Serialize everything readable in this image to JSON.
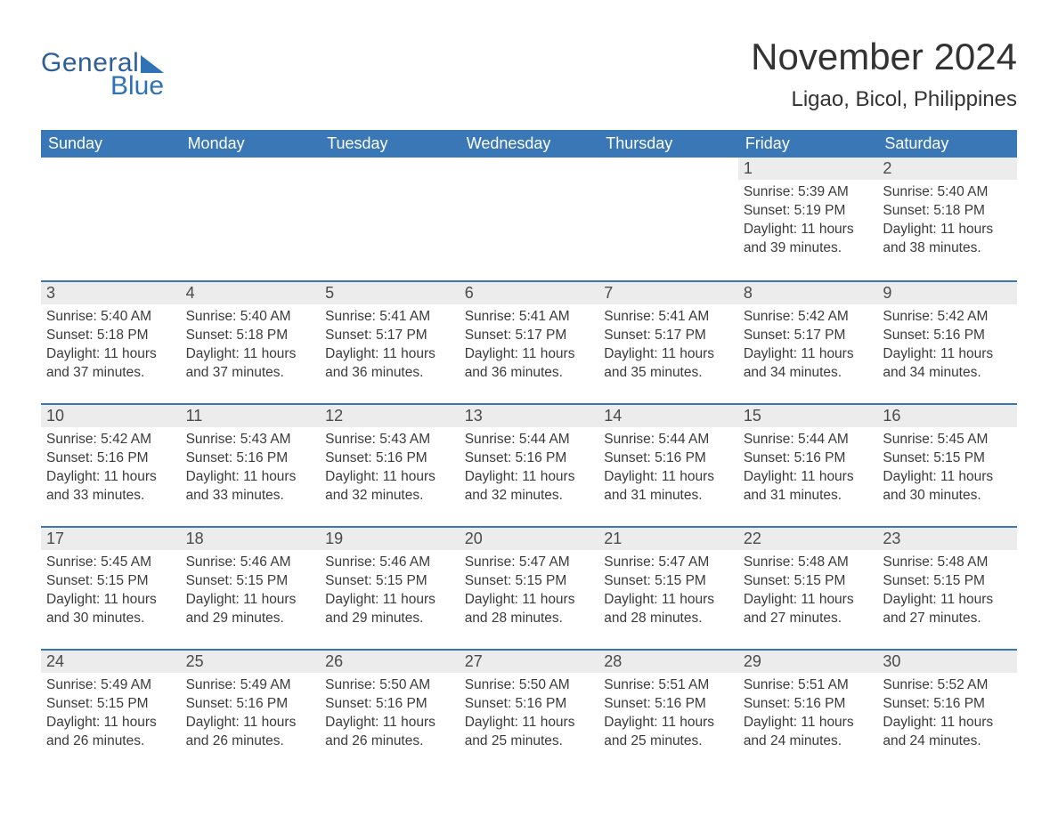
{
  "brand": {
    "word1": "General",
    "word2": "Blue",
    "logo_color1": "#2f5f98",
    "logo_color2": "#2f72b5"
  },
  "header": {
    "month_title": "November 2024",
    "location": "Ligao, Bicol, Philippines"
  },
  "style": {
    "header_bg": "#3a77b7",
    "header_text_color": "#ffffff",
    "daynum_bg": "#ececec",
    "row_divider_color": "#3a77b7",
    "body_text_color": "#3b3b3b",
    "page_bg": "#ffffff",
    "font_family": "Arial, Helvetica, sans-serif",
    "title_fontsize_pt": 32,
    "location_fontsize_pt": 18,
    "header_fontsize_pt": 14,
    "daynum_fontsize_pt": 14,
    "body_fontsize_pt": 12
  },
  "calendar": {
    "weekdays": [
      "Sunday",
      "Monday",
      "Tuesday",
      "Wednesday",
      "Thursday",
      "Friday",
      "Saturday"
    ],
    "weeks": [
      [
        null,
        null,
        null,
        null,
        null,
        {
          "n": "1",
          "sunrise": "Sunrise: 5:39 AM",
          "sunset": "Sunset: 5:19 PM",
          "daylight": "Daylight: 11 hours and 39 minutes."
        },
        {
          "n": "2",
          "sunrise": "Sunrise: 5:40 AM",
          "sunset": "Sunset: 5:18 PM",
          "daylight": "Daylight: 11 hours and 38 minutes."
        }
      ],
      [
        {
          "n": "3",
          "sunrise": "Sunrise: 5:40 AM",
          "sunset": "Sunset: 5:18 PM",
          "daylight": "Daylight: 11 hours and 37 minutes."
        },
        {
          "n": "4",
          "sunrise": "Sunrise: 5:40 AM",
          "sunset": "Sunset: 5:18 PM",
          "daylight": "Daylight: 11 hours and 37 minutes."
        },
        {
          "n": "5",
          "sunrise": "Sunrise: 5:41 AM",
          "sunset": "Sunset: 5:17 PM",
          "daylight": "Daylight: 11 hours and 36 minutes."
        },
        {
          "n": "6",
          "sunrise": "Sunrise: 5:41 AM",
          "sunset": "Sunset: 5:17 PM",
          "daylight": "Daylight: 11 hours and 36 minutes."
        },
        {
          "n": "7",
          "sunrise": "Sunrise: 5:41 AM",
          "sunset": "Sunset: 5:17 PM",
          "daylight": "Daylight: 11 hours and 35 minutes."
        },
        {
          "n": "8",
          "sunrise": "Sunrise: 5:42 AM",
          "sunset": "Sunset: 5:17 PM",
          "daylight": "Daylight: 11 hours and 34 minutes."
        },
        {
          "n": "9",
          "sunrise": "Sunrise: 5:42 AM",
          "sunset": "Sunset: 5:16 PM",
          "daylight": "Daylight: 11 hours and 34 minutes."
        }
      ],
      [
        {
          "n": "10",
          "sunrise": "Sunrise: 5:42 AM",
          "sunset": "Sunset: 5:16 PM",
          "daylight": "Daylight: 11 hours and 33 minutes."
        },
        {
          "n": "11",
          "sunrise": "Sunrise: 5:43 AM",
          "sunset": "Sunset: 5:16 PM",
          "daylight": "Daylight: 11 hours and 33 minutes."
        },
        {
          "n": "12",
          "sunrise": "Sunrise: 5:43 AM",
          "sunset": "Sunset: 5:16 PM",
          "daylight": "Daylight: 11 hours and 32 minutes."
        },
        {
          "n": "13",
          "sunrise": "Sunrise: 5:44 AM",
          "sunset": "Sunset: 5:16 PM",
          "daylight": "Daylight: 11 hours and 32 minutes."
        },
        {
          "n": "14",
          "sunrise": "Sunrise: 5:44 AM",
          "sunset": "Sunset: 5:16 PM",
          "daylight": "Daylight: 11 hours and 31 minutes."
        },
        {
          "n": "15",
          "sunrise": "Sunrise: 5:44 AM",
          "sunset": "Sunset: 5:16 PM",
          "daylight": "Daylight: 11 hours and 31 minutes."
        },
        {
          "n": "16",
          "sunrise": "Sunrise: 5:45 AM",
          "sunset": "Sunset: 5:15 PM",
          "daylight": "Daylight: 11 hours and 30 minutes."
        }
      ],
      [
        {
          "n": "17",
          "sunrise": "Sunrise: 5:45 AM",
          "sunset": "Sunset: 5:15 PM",
          "daylight": "Daylight: 11 hours and 30 minutes."
        },
        {
          "n": "18",
          "sunrise": "Sunrise: 5:46 AM",
          "sunset": "Sunset: 5:15 PM",
          "daylight": "Daylight: 11 hours and 29 minutes."
        },
        {
          "n": "19",
          "sunrise": "Sunrise: 5:46 AM",
          "sunset": "Sunset: 5:15 PM",
          "daylight": "Daylight: 11 hours and 29 minutes."
        },
        {
          "n": "20",
          "sunrise": "Sunrise: 5:47 AM",
          "sunset": "Sunset: 5:15 PM",
          "daylight": "Daylight: 11 hours and 28 minutes."
        },
        {
          "n": "21",
          "sunrise": "Sunrise: 5:47 AM",
          "sunset": "Sunset: 5:15 PM",
          "daylight": "Daylight: 11 hours and 28 minutes."
        },
        {
          "n": "22",
          "sunrise": "Sunrise: 5:48 AM",
          "sunset": "Sunset: 5:15 PM",
          "daylight": "Daylight: 11 hours and 27 minutes."
        },
        {
          "n": "23",
          "sunrise": "Sunrise: 5:48 AM",
          "sunset": "Sunset: 5:15 PM",
          "daylight": "Daylight: 11 hours and 27 minutes."
        }
      ],
      [
        {
          "n": "24",
          "sunrise": "Sunrise: 5:49 AM",
          "sunset": "Sunset: 5:15 PM",
          "daylight": "Daylight: 11 hours and 26 minutes."
        },
        {
          "n": "25",
          "sunrise": "Sunrise: 5:49 AM",
          "sunset": "Sunset: 5:16 PM",
          "daylight": "Daylight: 11 hours and 26 minutes."
        },
        {
          "n": "26",
          "sunrise": "Sunrise: 5:50 AM",
          "sunset": "Sunset: 5:16 PM",
          "daylight": "Daylight: 11 hours and 26 minutes."
        },
        {
          "n": "27",
          "sunrise": "Sunrise: 5:50 AM",
          "sunset": "Sunset: 5:16 PM",
          "daylight": "Daylight: 11 hours and 25 minutes."
        },
        {
          "n": "28",
          "sunrise": "Sunrise: 5:51 AM",
          "sunset": "Sunset: 5:16 PM",
          "daylight": "Daylight: 11 hours and 25 minutes."
        },
        {
          "n": "29",
          "sunrise": "Sunrise: 5:51 AM",
          "sunset": "Sunset: 5:16 PM",
          "daylight": "Daylight: 11 hours and 24 minutes."
        },
        {
          "n": "30",
          "sunrise": "Sunrise: 5:52 AM",
          "sunset": "Sunset: 5:16 PM",
          "daylight": "Daylight: 11 hours and 24 minutes."
        }
      ]
    ]
  }
}
